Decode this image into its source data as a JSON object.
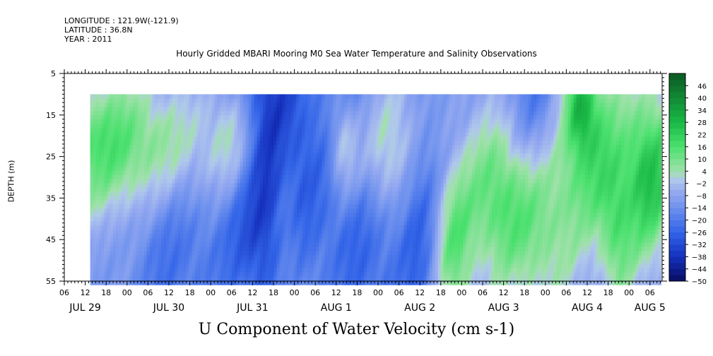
{
  "header": {
    "longitude": "LONGITUDE : 121.9W(-121.9)",
    "latitude": "LATITUDE : 36.8N",
    "year": "YEAR : 2011"
  },
  "chart_data": {
    "type": "heatmap",
    "title": "Hourly Gridded MBARI Mooring M0 Sea Water Temperature and Salinity Observations",
    "variable_title": "U Component of Water Velocity (cm s-1)",
    "ylabel": "DEPTH (m)",
    "y_ticks": [
      5,
      15,
      25,
      35,
      45,
      55
    ],
    "ylim": [
      55,
      5
    ],
    "data_depth_range": [
      10,
      55
    ],
    "x_hour_ticks": [
      "06",
      "12",
      "18",
      "00",
      "06",
      "12",
      "18",
      "00",
      "06",
      "12",
      "18",
      "00",
      "06",
      "12",
      "18",
      "00",
      "06",
      "12",
      "18",
      "00",
      "06",
      "12",
      "18",
      "00",
      "06",
      "12",
      "18",
      "00",
      "06",
      "12",
      "18",
      "00",
      "06"
    ],
    "x_date_labels": [
      {
        "label": "JUL 29",
        "tick_index": 1
      },
      {
        "label": "JUL 30",
        "tick_index": 5
      },
      {
        "label": "JUL 31",
        "tick_index": 9
      },
      {
        "label": "AUG  1",
        "tick_index": 13
      },
      {
        "label": "AUG  2",
        "tick_index": 17
      },
      {
        "label": "AUG  3",
        "tick_index": 21
      },
      {
        "label": "AUG  4",
        "tick_index": 25
      },
      {
        "label": "AUG  5",
        "tick_index": 28
      }
    ],
    "data_start_tick_index": 1,
    "data_end_tick_index": 32.5,
    "colorbar_labels": [
      46,
      40,
      34,
      28,
      22,
      16,
      10,
      4,
      -2,
      -8,
      -14,
      -20,
      -26,
      -32,
      -38,
      -44,
      -50
    ],
    "colorbar_range": [
      -50,
      52
    ],
    "colors": {
      "strong_negative": "#0b1b7a",
      "mid_negative": "#3f6fe8",
      "weak_negative": "#9ab0f0",
      "near_zero": "#a8d8a8",
      "positive": "#33d65e",
      "strong_positive": "#0b5e23"
    },
    "grid": false
  }
}
